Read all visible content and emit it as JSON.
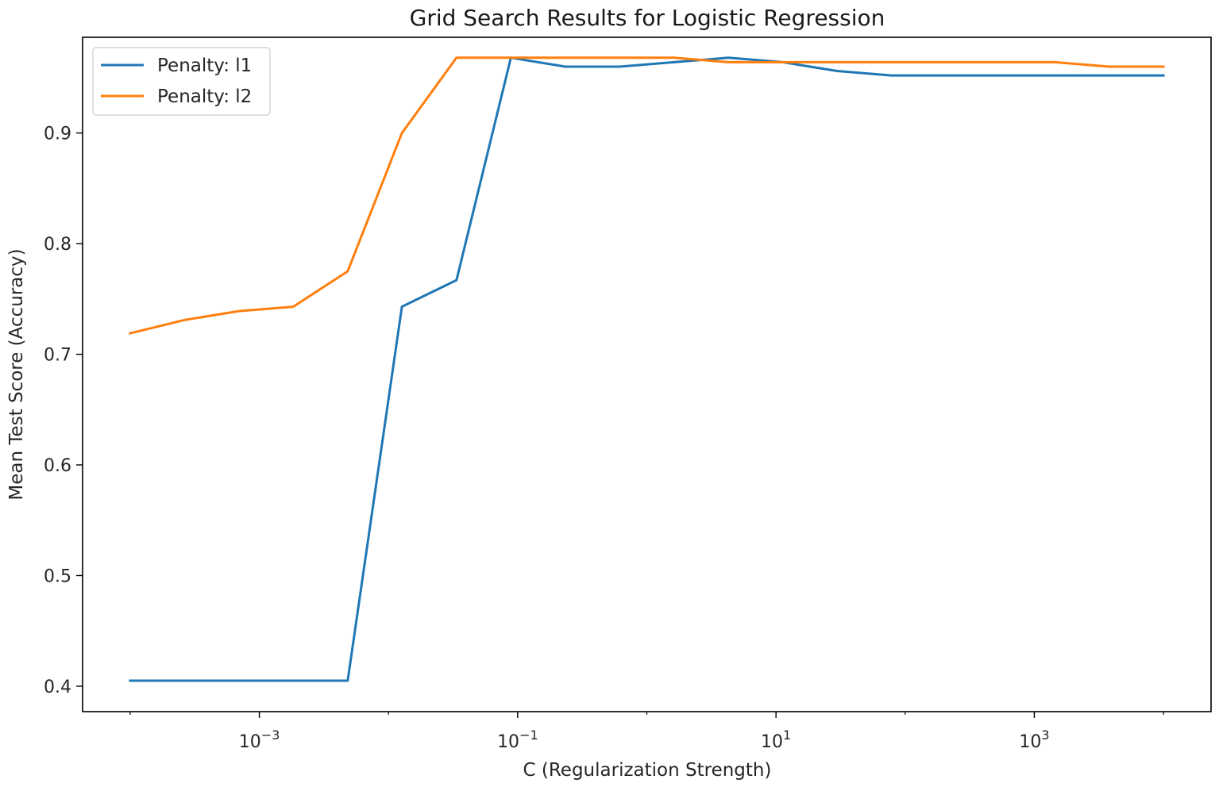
{
  "chart_data": {
    "type": "line",
    "title": "Grid Search Results for Logistic Regression",
    "xlabel": "C (Regularization Strength)",
    "ylabel": "Mean Test Score (Accuracy)",
    "xscale": "log",
    "x": [
      0.0001,
      0.000264,
      0.000695,
      0.00183,
      0.00483,
      0.0127,
      0.0336,
      0.0886,
      0.234,
      0.616,
      1.62,
      4.28,
      11.3,
      29.8,
      78.5,
      207,
      546,
      1438,
      3793,
      10000
    ],
    "series": [
      {
        "name": "Penalty: l1",
        "color": "#1f77b4",
        "values": [
          0.405,
          0.405,
          0.405,
          0.405,
          0.405,
          0.743,
          0.767,
          0.968,
          0.96,
          0.96,
          0.964,
          0.968,
          0.964,
          0.956,
          0.952,
          0.952,
          0.952,
          0.952,
          0.952,
          0.952
        ]
      },
      {
        "name": "Penalty: l2",
        "color": "#ff7f0e",
        "values": [
          0.719,
          0.731,
          0.739,
          0.743,
          0.775,
          0.9,
          0.968,
          0.968,
          0.968,
          0.968,
          0.968,
          0.964,
          0.964,
          0.964,
          0.964,
          0.964,
          0.964,
          0.964,
          0.96,
          0.96
        ]
      }
    ],
    "xlim": [
      4.28e-05,
      23360
    ],
    "ylim": [
      0.377,
      0.9865
    ],
    "xticks": [
      {
        "value": 0.001,
        "base": "10",
        "exp": "−3"
      },
      {
        "value": 0.1,
        "base": "10",
        "exp": "−1"
      },
      {
        "value": 10,
        "base": "10",
        "exp": "1"
      },
      {
        "value": 1000,
        "base": "10",
        "exp": "3"
      }
    ],
    "yticks": [
      {
        "value": 0.4,
        "label": "0.4"
      },
      {
        "value": 0.5,
        "label": "0.5"
      },
      {
        "value": 0.6,
        "label": "0.6"
      },
      {
        "value": 0.7,
        "label": "0.7"
      },
      {
        "value": 0.8,
        "label": "0.8"
      },
      {
        "value": 0.9,
        "label": "0.9"
      }
    ],
    "grid": false,
    "legend_position": "upper-left"
  }
}
